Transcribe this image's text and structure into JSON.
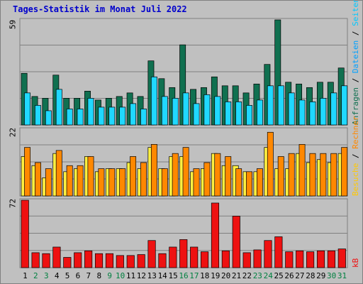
{
  "title": "Tages-Statistik im Monat Juli 2022",
  "colors": {
    "background": "#c0c0c0",
    "title": "#0000cc",
    "weekday": "#000000",
    "weekend": "#008040",
    "anfragen": "#107050",
    "dateien": "#20d8ff",
    "seiten": "#fff040",
    "besuche": "#ff8800",
    "kb": "#ee1111",
    "label_seiten": "#ffc800",
    "label_besuche": "#ff8800",
    "label_kb": "#ee1111"
  },
  "legend": {
    "top": [
      {
        "text": "Anfragen",
        "color": "#107050"
      },
      {
        "text": " / ",
        "color": "#000000"
      },
      {
        "text": "Dateien",
        "color": "#00a0ff"
      },
      {
        "text": " / ",
        "color": "#000000"
      },
      {
        "text": "Seiten",
        "color": "#00c8ff"
      }
    ],
    "mid": [
      {
        "text": "Besuche",
        "color": "#ffc800"
      },
      {
        "text": " / ",
        "color": "#000000"
      },
      {
        "text": "Rechner",
        "color": "#ff8800"
      }
    ],
    "bottom": [
      {
        "text": "kB",
        "color": "#ee1111"
      }
    ]
  },
  "chart_data": [
    {
      "type": "bar",
      "panel": "top",
      "ymax_label": "59",
      "ylim": [
        0,
        59
      ],
      "categories": [
        "1",
        "2",
        "3",
        "4",
        "5",
        "6",
        "7",
        "8",
        "9",
        "10",
        "11",
        "12",
        "13",
        "14",
        "15",
        "16",
        "17",
        "18",
        "19",
        "20",
        "21",
        "22",
        "23",
        "24",
        "25",
        "26",
        "27",
        "28",
        "29",
        "30",
        "31"
      ],
      "series": [
        {
          "name": "Anfragen",
          "values": [
            29,
            16,
            15,
            28,
            15,
            15,
            19,
            14,
            15,
            16,
            18,
            16,
            36,
            26,
            21,
            45,
            20,
            21,
            27,
            22,
            22,
            18,
            23,
            34,
            59,
            24,
            23,
            21,
            24,
            24,
            32
          ]
        },
        {
          "name": "Dateien",
          "values": [
            18,
            11,
            8,
            20,
            9,
            9,
            15,
            10,
            10,
            10,
            12,
            9,
            27,
            16,
            15,
            18,
            12,
            17,
            16,
            13,
            13,
            11,
            14,
            22,
            22,
            18,
            14,
            13,
            15,
            18,
            22
          ]
        }
      ]
    },
    {
      "type": "bar",
      "panel": "middle",
      "ymax_label": "22",
      "ylim": [
        0,
        22
      ],
      "categories": [
        "1",
        "2",
        "3",
        "4",
        "5",
        "6",
        "7",
        "8",
        "9",
        "10",
        "11",
        "12",
        "13",
        "14",
        "15",
        "16",
        "17",
        "18",
        "19",
        "20",
        "21",
        "22",
        "23",
        "24",
        "25",
        "26",
        "27",
        "28",
        "29",
        "30",
        "31"
      ],
      "series": [
        {
          "name": "Seiten",
          "values": [
            13,
            10,
            6,
            14,
            8,
            9,
            13,
            8,
            9,
            9,
            11,
            9,
            16,
            9,
            13,
            13,
            8,
            9,
            14,
            10,
            10,
            8,
            8,
            16,
            9,
            9,
            14,
            11,
            12,
            11,
            14
          ]
        },
        {
          "name": "Besuche",
          "values": [
            16,
            11,
            9,
            15,
            10,
            10,
            13,
            9,
            9,
            9,
            13,
            11,
            17,
            9,
            14,
            16,
            9,
            11,
            14,
            13,
            9,
            8,
            9,
            21,
            13,
            14,
            17,
            14,
            14,
            14,
            16
          ]
        }
      ]
    },
    {
      "type": "bar",
      "panel": "bottom",
      "ymax_label": "72",
      "ylim": [
        0,
        72
      ],
      "categories": [
        "1",
        "2",
        "3",
        "4",
        "5",
        "6",
        "7",
        "8",
        "9",
        "10",
        "11",
        "12",
        "13",
        "14",
        "15",
        "16",
        "17",
        "18",
        "19",
        "20",
        "21",
        "22",
        "23",
        "24",
        "25",
        "26",
        "27",
        "28",
        "29",
        "30",
        "31"
      ],
      "series": [
        {
          "name": "kB",
          "values": [
            72,
            16,
            15,
            22,
            11,
            16,
            18,
            15,
            15,
            13,
            13,
            14,
            29,
            15,
            22,
            30,
            22,
            17,
            69,
            18,
            55,
            16,
            19,
            29,
            33,
            17,
            18,
            17,
            18,
            18,
            20
          ]
        }
      ]
    }
  ],
  "weekends": [
    "2",
    "3",
    "9",
    "10",
    "16",
    "17",
    "23",
    "24",
    "30",
    "31"
  ]
}
